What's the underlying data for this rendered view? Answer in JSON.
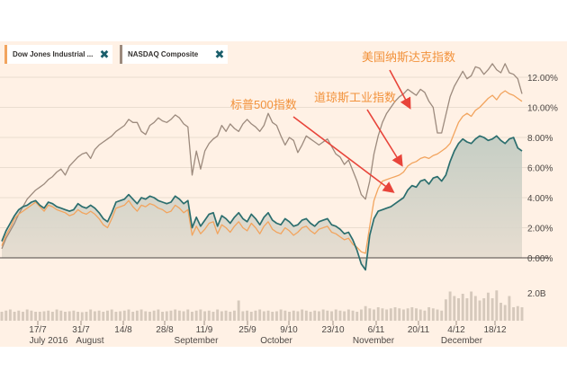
{
  "legend": {
    "tabs": [
      {
        "label": "Dow Jones Industrial ...",
        "color": "#f2a45e"
      },
      {
        "label": "NASDAQ Composite",
        "color": "#9c8a7d"
      }
    ]
  },
  "chart_data": {
    "type": "line",
    "y_unit": "%",
    "ylim": [
      -0.8,
      13.2
    ],
    "y_ticks": [
      "0.00%",
      "2.00%",
      "4.00%",
      "6.00%",
      "8.00%",
      "10.00%",
      "12.00%"
    ],
    "volume_label": "2.0B",
    "x_ticks": [
      "17/7",
      "31/7",
      "14/8",
      "28/8",
      "11/9",
      "25/9",
      "9/10",
      "23/10",
      "6/11",
      "20/11",
      "4/12",
      "18/12"
    ],
    "month_labels": [
      "July 2016",
      "August",
      "September",
      "October",
      "November",
      "December"
    ],
    "annotations": [
      {
        "text": "美国纳斯达克指数",
        "target_series": "NASDAQ Composite"
      },
      {
        "text": "道琼斯工业指数",
        "target_series": "Dow Jones Industrial ..."
      },
      {
        "text": "标普500指数",
        "target_series": "S&P 500"
      }
    ],
    "series": [
      {
        "name": "NASDAQ Composite",
        "color": "#9c8a7d",
        "values": [
          0.6,
          1.3,
          1.8,
          2.3,
          2.9,
          3.4,
          3.9,
          4.2,
          4.5,
          4.7,
          4.9,
          5.2,
          5.4,
          5.7,
          5.9,
          5.5,
          6.1,
          6.4,
          6.7,
          6.9,
          7.0,
          6.6,
          7.2,
          7.5,
          7.7,
          7.9,
          8.1,
          8.4,
          8.6,
          8.8,
          9.2,
          9.0,
          9.0,
          8.4,
          8.2,
          8.8,
          9.0,
          9.3,
          9.1,
          9.0,
          9.2,
          9.5,
          9.3,
          8.9,
          8.7,
          5.5,
          7.1,
          5.9,
          7.1,
          7.6,
          7.9,
          8.1,
          8.8,
          8.4,
          8.9,
          8.6,
          8.4,
          8.9,
          9.2,
          8.9,
          8.7,
          8.4,
          8.8,
          9.6,
          9.0,
          8.8,
          8.1,
          7.5,
          8.0,
          7.8,
          7.0,
          7.5,
          8.1,
          7.9,
          7.7,
          7.5,
          7.7,
          7.9,
          7.4,
          6.9,
          6.7,
          6.2,
          6.5,
          5.8,
          5.1,
          4.2,
          3.9,
          5.1,
          6.9,
          8.1,
          9.0,
          9.6,
          10.0,
          10.4,
          10.7,
          10.9,
          11.2,
          11.0,
          10.8,
          11.2,
          11.0,
          10.4,
          10.0,
          8.3,
          8.3,
          9.5,
          10.7,
          11.4,
          11.9,
          12.4,
          11.9,
          12.1,
          12.7,
          12.6,
          12.2,
          12.5,
          12.9,
          12.5,
          12.3,
          12.9,
          12.3,
          12.2,
          11.9,
          10.9
        ]
      },
      {
        "name": "Dow Jones Industrial ...",
        "color": "#f2a45e",
        "values": [
          0.8,
          1.5,
          2.0,
          2.6,
          2.9,
          3.1,
          3.3,
          3.5,
          3.7,
          3.4,
          3.1,
          3.5,
          3.4,
          3.2,
          3.1,
          3.0,
          2.8,
          2.9,
          3.2,
          3.0,
          2.9,
          3.1,
          2.9,
          2.6,
          2.2,
          2.0,
          2.6,
          3.3,
          3.4,
          3.5,
          3.8,
          3.4,
          3.1,
          3.5,
          3.4,
          3.6,
          3.5,
          3.3,
          3.2,
          3.0,
          3.1,
          3.5,
          3.3,
          3.0,
          3.2,
          1.5,
          2.1,
          1.6,
          1.9,
          2.3,
          2.4,
          1.6,
          2.2,
          2.0,
          1.7,
          2.1,
          2.4,
          2.0,
          1.8,
          2.3,
          2.0,
          1.6,
          2.1,
          2.4,
          1.9,
          1.7,
          1.6,
          2.0,
          1.8,
          1.5,
          1.7,
          2.0,
          2.1,
          1.8,
          1.6,
          1.9,
          2.0,
          2.1,
          1.7,
          1.6,
          1.4,
          1.2,
          1.3,
          0.9,
          0.7,
          0.4,
          0.3,
          2.1,
          3.8,
          4.6,
          5.1,
          5.2,
          5.3,
          5.4,
          5.5,
          5.7,
          6.1,
          6.3,
          6.4,
          6.6,
          6.7,
          6.6,
          6.8,
          6.9,
          7.1,
          7.3,
          7.6,
          8.3,
          9.0,
          9.4,
          9.6,
          9.4,
          9.8,
          10.0,
          10.3,
          10.6,
          10.8,
          10.5,
          10.9,
          11.1,
          10.9,
          10.8,
          10.6,
          10.4
        ]
      },
      {
        "name": "S&P 500",
        "color": "#2b6e6e",
        "values": [
          1.1,
          1.8,
          2.3,
          2.8,
          3.2,
          3.4,
          3.5,
          3.7,
          3.8,
          3.5,
          3.3,
          3.7,
          3.6,
          3.4,
          3.3,
          3.2,
          3.1,
          3.2,
          3.6,
          3.4,
          3.3,
          3.5,
          3.3,
          3.0,
          2.6,
          2.4,
          3.0,
          3.7,
          3.8,
          3.9,
          4.2,
          3.9,
          3.6,
          4.0,
          3.9,
          4.1,
          4.0,
          3.8,
          3.7,
          3.6,
          3.7,
          4.1,
          3.9,
          3.6,
          3.8,
          2.0,
          2.7,
          2.1,
          2.5,
          2.9,
          3.0,
          2.1,
          2.8,
          2.6,
          2.3,
          2.7,
          3.0,
          2.6,
          2.4,
          2.9,
          2.6,
          2.2,
          2.7,
          3.0,
          2.5,
          2.3,
          2.2,
          2.6,
          2.4,
          2.1,
          2.2,
          2.5,
          2.6,
          2.3,
          2.1,
          2.4,
          2.5,
          2.6,
          2.2,
          2.1,
          1.9,
          1.6,
          1.7,
          1.2,
          0.5,
          -0.4,
          -0.8,
          1.5,
          2.6,
          3.1,
          3.2,
          3.3,
          3.4,
          3.6,
          3.8,
          4.0,
          4.5,
          4.8,
          4.7,
          5.1,
          5.2,
          4.9,
          5.3,
          5.4,
          5.1,
          5.5,
          6.4,
          7.1,
          7.6,
          7.9,
          7.7,
          7.6,
          7.9,
          8.1,
          8.0,
          7.8,
          7.9,
          8.1,
          7.8,
          7.6,
          7.9,
          8.0,
          7.3,
          7.1
        ]
      }
    ],
    "volume": [
      0.4,
      0.45,
      0.5,
      0.4,
      0.45,
      0.4,
      0.5,
      0.45,
      0.4,
      0.4,
      0.42,
      0.45,
      0.4,
      0.5,
      0.45,
      0.4,
      0.42,
      0.45,
      0.4,
      0.38,
      0.4,
      0.5,
      0.42,
      0.45,
      0.4,
      0.45,
      0.5,
      0.4,
      0.42,
      0.45,
      0.5,
      0.4,
      0.45,
      0.5,
      0.42,
      0.4,
      0.45,
      0.5,
      0.4,
      0.42,
      0.45,
      0.5,
      0.45,
      0.42,
      0.5,
      0.4,
      0.45,
      0.5,
      0.42,
      0.45,
      0.4,
      0.5,
      0.42,
      0.45,
      0.4,
      0.45,
      0.9,
      0.42,
      0.45,
      0.4,
      0.45,
      0.5,
      0.42,
      0.45,
      0.4,
      0.42,
      0.5,
      0.45,
      0.4,
      0.45,
      0.42,
      0.5,
      0.45,
      0.4,
      0.45,
      0.42,
      0.5,
      0.45,
      0.42,
      0.5,
      0.45,
      0.42,
      0.5,
      0.45,
      0.4,
      0.5,
      0.65,
      0.55,
      0.5,
      0.6,
      0.55,
      0.5,
      0.55,
      0.6,
      0.55,
      0.5,
      0.55,
      0.6,
      0.55,
      0.5,
      0.45,
      0.6,
      0.55,
      0.5,
      0.45,
      0.95,
      1.3,
      1.1,
      1.0,
      1.2,
      1.0,
      1.3,
      1.1,
      0.9,
      1.0,
      1.25,
      1.0,
      1.35,
      0.8,
      0.7,
      1.1,
      0.6,
      0.65,
      0.6
    ]
  }
}
